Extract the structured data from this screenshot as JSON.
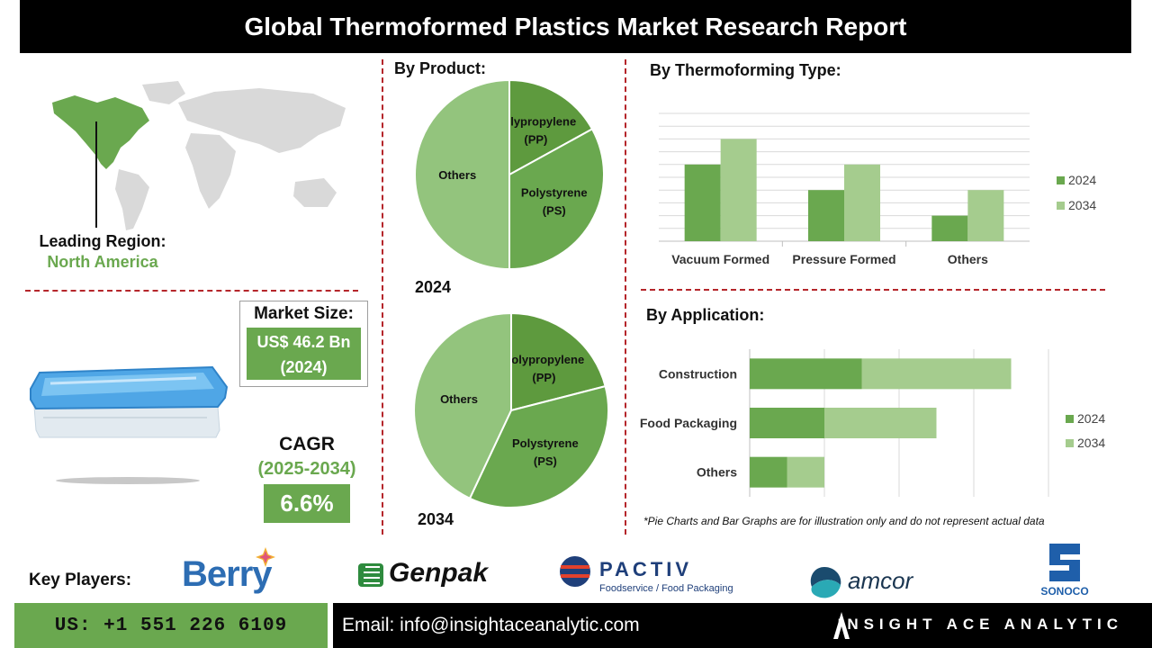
{
  "title": "Global Thermoformed Plastics Market Research Report",
  "region": {
    "label": "Leading Region:",
    "value": "North America"
  },
  "market_size": {
    "label": "Market Size:",
    "value": "US$ 46.2 Bn",
    "year": "(2024)"
  },
  "cagr": {
    "label": "CAGR",
    "period": "(2025-2034)",
    "value": "6.6%"
  },
  "product_section": {
    "title": "By  Product:",
    "year_2024": "2024",
    "year_2034": "2034"
  },
  "type_section": {
    "title": "By Thermoforming Type:"
  },
  "application_section": {
    "title": "By Application:"
  },
  "disclaimer": "*Pie Charts and Bar Graphs are for illustration only and do not represent actual data",
  "key_players": {
    "label": "Key Players:",
    "logos": [
      {
        "name": "Berry"
      },
      {
        "name": "Genpak"
      },
      {
        "name": "PACTIV",
        "tagline": "Foodservice / Food Packaging"
      },
      {
        "name": "amcor"
      },
      {
        "name": "SONOCO"
      }
    ]
  },
  "footer": {
    "phone": "US: +1 551 226 6109",
    "email": "Email: info@insightaceanalytic.com",
    "brand": "INSIGHT ACE ANALYTIC"
  },
  "colors": {
    "dark_green": "#5a9a3c",
    "mid_green": "#6aa84f",
    "light_green": "#a5cc8e",
    "pie_light": "#93c47d",
    "accent_red": "#b5262b"
  },
  "chart_data": [
    {
      "type": "pie",
      "year": "2024",
      "slices": [
        {
          "label": "Polypropylene (PP)",
          "lines": [
            "Polypropylene",
            "(PP)"
          ],
          "value": 17,
          "color": "#5e9a3e"
        },
        {
          "label": "Polystyrene (PS)",
          "lines": [
            "Polystyrene",
            "(PS)"
          ],
          "value": 33,
          "color": "#6aa84f"
        },
        {
          "label": "Others",
          "lines": [
            "Others"
          ],
          "value": 50,
          "color": "#93c47d"
        }
      ]
    },
    {
      "type": "pie",
      "year": "2034",
      "slices": [
        {
          "label": "Polypropylene (PP)",
          "lines": [
            "Polypropylene",
            "(PP)"
          ],
          "value": 21,
          "color": "#5e9a3e"
        },
        {
          "label": "Polystyrene (PS)",
          "lines": [
            "Polystyrene",
            "(PS)"
          ],
          "value": 36,
          "color": "#6aa84f"
        },
        {
          "label": "Others",
          "lines": [
            "Others"
          ],
          "value": 43,
          "color": "#93c47d"
        }
      ]
    },
    {
      "type": "bar",
      "orientation": "vertical",
      "categories": [
        "Vacuum Formed",
        "Pressure Formed",
        "Others"
      ],
      "series": [
        {
          "name": "2024",
          "values": [
            3,
            2,
            1
          ],
          "color": "#6aa84f"
        },
        {
          "name": "2034",
          "values": [
            4,
            3,
            2
          ],
          "color": "#a5cc8e"
        }
      ],
      "ylim": [
        0,
        5
      ],
      "grid": true,
      "legend": "right"
    },
    {
      "type": "bar",
      "orientation": "horizontal",
      "stacked": true,
      "categories": [
        "Construction",
        "Food Packaging",
        "Others"
      ],
      "series": [
        {
          "name": "2024",
          "values": [
            3,
            2,
            1
          ],
          "color": "#6aa84f"
        },
        {
          "name": "2034",
          "values": [
            4,
            3,
            1
          ],
          "color": "#a5cc8e"
        }
      ],
      "xlim": [
        0,
        8
      ],
      "grid": true,
      "legend": "right"
    }
  ]
}
